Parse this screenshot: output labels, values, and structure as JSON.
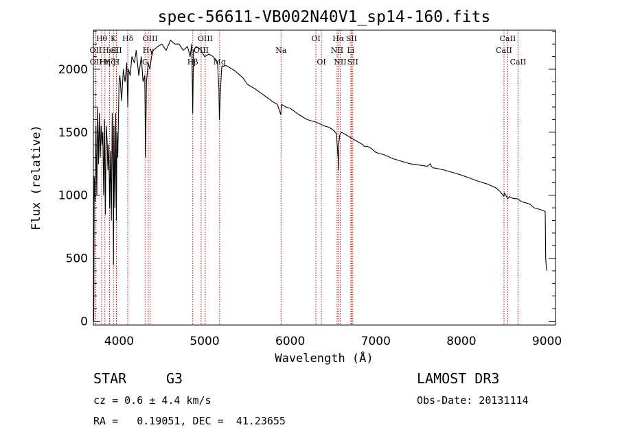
{
  "chart_data": {
    "type": "line",
    "title": "spec-56611-VB002N40V1_sp14-160.fits",
    "xlabel": "Wavelength (Å)",
    "ylabel": "Flux (relative)",
    "xlim": [
      3700,
      9100
    ],
    "ylim": [
      -30,
      2310
    ],
    "xticks": [
      4000,
      5000,
      6000,
      7000,
      8000,
      9000
    ],
    "yticks": [
      0,
      500,
      1000,
      1500,
      2000
    ],
    "series": [
      {
        "name": "flux",
        "x": [
          3700,
          3705,
          3710,
          3720,
          3730,
          3740,
          3750,
          3760,
          3770,
          3780,
          3790,
          3800,
          3810,
          3820,
          3830,
          3840,
          3850,
          3860,
          3870,
          3880,
          3890,
          3900,
          3910,
          3920,
          3930,
          3934,
          3940,
          3950,
          3960,
          3968,
          3975,
          3985,
          4000,
          4010,
          4030,
          4050,
          4070,
          4090,
          4102,
          4110,
          4130,
          4150,
          4180,
          4200,
          4230,
          4260,
          4280,
          4300,
          4310,
          4320,
          4340,
          4360,
          4380,
          4400,
          4450,
          4500,
          4550,
          4600,
          4650,
          4700,
          4750,
          4800,
          4830,
          4850,
          4861,
          4870,
          4900,
          4950,
          5000,
          5050,
          5100,
          5150,
          5167,
          5172,
          5183,
          5200,
          5250,
          5300,
          5350,
          5400,
          5450,
          5500,
          5600,
          5700,
          5800,
          5850,
          5890,
          5896,
          5900,
          5950,
          6000,
          6100,
          6200,
          6300,
          6400,
          6450,
          6500,
          6540,
          6560,
          6563,
          6566,
          6580,
          6600,
          6650,
          6700,
          6750,
          6800,
          6850,
          6870,
          6900,
          6950,
          7000,
          7050,
          7100,
          7200,
          7300,
          7400,
          7500,
          7600,
          7640,
          7650,
          7680,
          7700,
          7800,
          7900,
          8000,
          8100,
          8200,
          8300,
          8400,
          8450,
          8498,
          8500,
          8520,
          8542,
          8560,
          8600,
          8662,
          8700,
          8800,
          8850,
          8900,
          8950,
          8980,
          8985,
          8990,
          8995,
          9000
        ],
        "values": [
          200,
          0,
          1150,
          950,
          1550,
          1000,
          1700,
          1250,
          1650,
          1300,
          1550,
          1400,
          1500,
          1000,
          1600,
          850,
          1550,
          1450,
          1200,
          1400,
          900,
          1350,
          800,
          1650,
          1100,
          450,
          1550,
          900,
          1650,
          800,
          1500,
          1300,
          1900,
          1950,
          1750,
          2000,
          1900,
          2050,
          1700,
          2000,
          1950,
          2100,
          2050,
          2150,
          1950,
          2100,
          1900,
          1950,
          1300,
          1900,
          2050,
          2000,
          2100,
          2150,
          2180,
          2200,
          2150,
          2230,
          2200,
          2200,
          2150,
          2180,
          2100,
          2200,
          1650,
          2150,
          2180,
          2160,
          2100,
          2120,
          2100,
          2060,
          1850,
          1600,
          1800,
          2020,
          2030,
          2010,
          1990,
          1960,
          1930,
          1880,
          1840,
          1790,
          1740,
          1720,
          1640,
          1700,
          1720,
          1700,
          1690,
          1640,
          1600,
          1580,
          1550,
          1540,
          1520,
          1490,
          1300,
          1200,
          1400,
          1480,
          1500,
          1480,
          1460,
          1440,
          1420,
          1400,
          1385,
          1390,
          1370,
          1340,
          1330,
          1320,
          1290,
          1270,
          1250,
          1240,
          1230,
          1250,
          1225,
          1215,
          1215,
          1200,
          1180,
          1160,
          1135,
          1110,
          1090,
          1060,
          1030,
          990,
          1020,
          1000,
          970,
          990,
          975,
          970,
          950,
          930,
          900,
          890,
          880,
          870,
          500,
          450,
          420,
          400
        ]
      }
    ],
    "lines": [
      {
        "name": "Hθ",
        "wl": 3797,
        "row": 0
      },
      {
        "name": "OII",
        "wl": 3727,
        "row": 1
      },
      {
        "name": "OII",
        "wl": 3729,
        "row": 2
      },
      {
        "name": "Hη",
        "wl": 3835,
        "row": 2
      },
      {
        "name": "HeI",
        "wl": 3889,
        "row": 1
      },
      {
        "name": "Hζ",
        "wl": 3889,
        "row": 2
      },
      {
        "name": "K",
        "wl": 3934,
        "row": 0
      },
      {
        "name": "SII",
        "wl": 3970,
        "row": 1
      },
      {
        "name": "H",
        "wl": 3968,
        "row": 2
      },
      {
        "name": "Hδ",
        "wl": 4102,
        "row": 0
      },
      {
        "name": "OIII",
        "wl": 4363,
        "row": 0
      },
      {
        "name": "Hγ",
        "wl": 4341,
        "row": 1
      },
      {
        "name": "G",
        "wl": 4304,
        "row": 2
      },
      {
        "name": "Hβ",
        "wl": 4861,
        "row": 2
      },
      {
        "name": "OIII",
        "wl": 5007,
        "row": 0
      },
      {
        "name": "OIII",
        "wl": 4959,
        "row": 1
      },
      {
        "name": "Mg",
        "wl": 5175,
        "row": 2
      },
      {
        "name": "Na",
        "wl": 5893,
        "row": 1
      },
      {
        "name": "OI",
        "wl": 6300,
        "row": 0
      },
      {
        "name": "OI",
        "wl": 6364,
        "row": 2
      },
      {
        "name": "Hα",
        "wl": 6563,
        "row": 0
      },
      {
        "name": "NII",
        "wl": 6548,
        "row": 1
      },
      {
        "name": "NII",
        "wl": 6584,
        "row": 2
      },
      {
        "name": "SII",
        "wl": 6716,
        "row": 0
      },
      {
        "name": "Li",
        "wl": 6708,
        "row": 1
      },
      {
        "name": "SII",
        "wl": 6731,
        "row": 2
      },
      {
        "name": "CaII",
        "wl": 8542,
        "row": 0
      },
      {
        "name": "CaII",
        "wl": 8498,
        "row": 1
      },
      {
        "name": "CaII",
        "wl": 8662,
        "row": 2
      }
    ]
  },
  "footer": {
    "object_class": "STAR",
    "subclass": "G3",
    "cz": "cz = 0.6 ± 4.4 km/s",
    "radec": "RA =   0.19051, DEC =  41.23655",
    "survey": "LAMOST DR3",
    "obs_date": "Obs-Date: 20131114"
  },
  "colors": {
    "spectrum": "#000000",
    "line_marker": "#cc0000",
    "axes": "#000000"
  }
}
